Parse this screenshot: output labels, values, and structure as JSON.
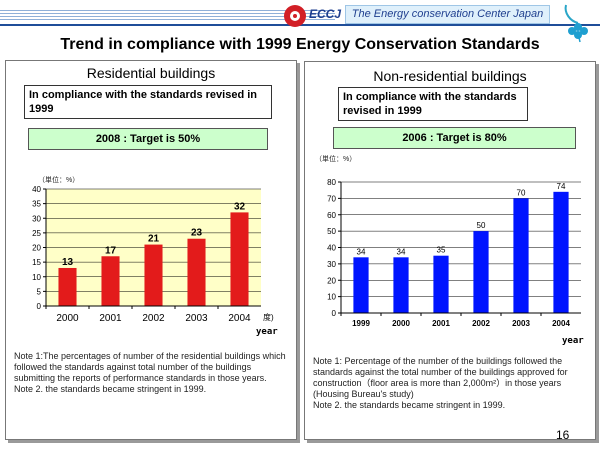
{
  "header": {
    "org_abbr": "ECCJ",
    "org_name": "The Energy conservation Center Japan"
  },
  "main_title": "Trend in compliance with 1999 Energy Conservation Standards",
  "page_number": "16",
  "left_panel": {
    "heading": "Residential buildings",
    "standard_box": "In compliance with the standards revised in 1999",
    "target_box": "2008 : Target is 50%",
    "unit_label": "（単位：%）",
    "year_label": "year",
    "note": "Note 1:The percentages of number of the residential buildings which followed the standards against total number of the buildings submitting the reports of performance standards in those years.\nNote 2. the standards became stringent in 1999."
  },
  "right_panel": {
    "heading": "Non-residential buildings",
    "standard_box": "In compliance with the standards revised in 1999",
    "target_box": "2006 : Target is 80%",
    "unit_label": "（単位：%）",
    "year_label": "year",
    "note": "Note 1: Percentage of the number of the buildings followed the standards against the total number of the buildings approved for construction（floor area is more than 2,000m²）in those years (Housing Bureau's study)\nNote 2. the standards became stringent in 1999."
  },
  "chart_data": [
    {
      "type": "bar",
      "title": "Residential buildings",
      "categories": [
        "2000",
        "2001",
        "2002",
        "2003",
        "2004"
      ],
      "values": [
        13,
        17,
        21,
        23,
        32
      ],
      "ylim": [
        0,
        40
      ],
      "yticks": [
        0,
        5,
        10,
        15,
        20,
        25,
        30,
        35,
        40
      ],
      "xlabel": "year",
      "ylabel": "（単位：%）",
      "x_suffix": "度)",
      "bar_color": "#e31b1b",
      "plot_bg": "#ffffc8",
      "label_color": "#000000",
      "grid": true
    },
    {
      "type": "bar",
      "title": "Non-residential buildings",
      "categories": [
        "1999",
        "2000",
        "2001",
        "2002",
        "2003",
        "2004"
      ],
      "values": [
        34,
        34,
        35,
        50,
        70,
        74
      ],
      "ylim": [
        0,
        80
      ],
      "yticks": [
        0,
        10,
        20,
        30,
        40,
        50,
        60,
        70,
        80
      ],
      "xlabel": "year",
      "ylabel": "（単位：%）",
      "bar_color": "#0014ff",
      "plot_bg": "#ffffff",
      "label_color": "#000000",
      "grid": true
    }
  ]
}
